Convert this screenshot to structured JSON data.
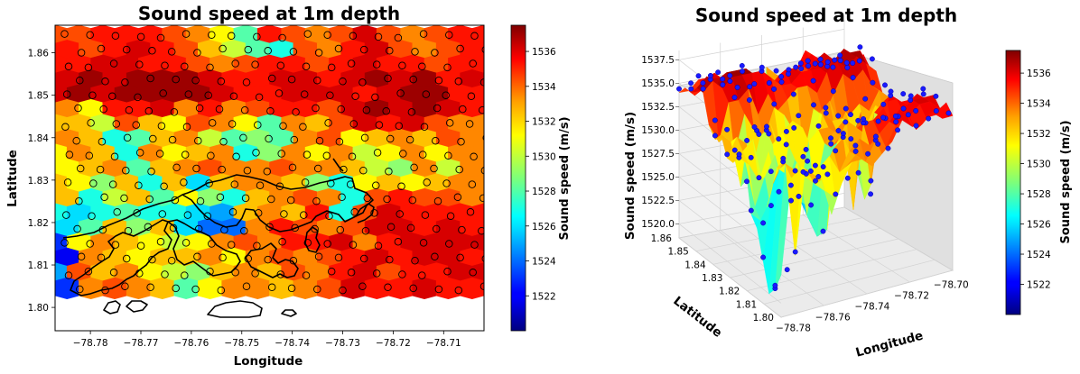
{
  "chart_data": [
    {
      "type": "heatmap",
      "title": "Sound speed  at 1m depth",
      "xlabel": "Longitude",
      "ylabel": "Latitude",
      "xticks": [
        "−78.78",
        "−78.77",
        "−78.76",
        "−78.75",
        "−78.74",
        "−78.73",
        "−78.72",
        "−78.71"
      ],
      "yticks": [
        "1.80",
        "1.81",
        "1.82",
        "1.83",
        "1.84",
        "1.85",
        "1.86"
      ],
      "xlim": [
        -78.787,
        -78.702
      ],
      "ylim": [
        1.7945,
        1.8665
      ],
      "data_ylim_bottom": 1.802,
      "colorbar": {
        "label": "Sound speed (m/s)",
        "ticks": [
          "1522",
          "1524",
          "1526",
          "1528",
          "1530",
          "1532",
          "1534",
          "1536"
        ],
        "range": [
          1520,
          1537.5
        ],
        "colormap": "jet"
      },
      "rows": [
        {
          "lat": 1.864,
          "values": [
            1534,
            1534,
            1535,
            1535,
            1535,
            1534,
            1533,
            1531,
            1528,
            1535,
            1534,
            1533,
            1534,
            1536,
            1534,
            1533,
            1534,
            1535
          ]
        },
        {
          "lat": 1.8605,
          "values": [
            1535,
            1534,
            1535,
            1536,
            1535,
            1534,
            1532,
            1530,
            1528,
            1527,
            1534,
            1533,
            1535,
            1536,
            1534,
            1533,
            1534,
            1535
          ]
        },
        {
          "lat": 1.857,
          "values": [
            1535,
            1535,
            1536,
            1536,
            1535,
            1535,
            1534,
            1533,
            1534,
            1535,
            1535,
            1534,
            1535,
            1536,
            1535,
            1535,
            1534,
            1535
          ]
        },
        {
          "lat": 1.8535,
          "values": [
            1536,
            1537,
            1536,
            1537,
            1537,
            1537,
            1536,
            1535,
            1535,
            1536,
            1536,
            1535,
            1536,
            1537,
            1536,
            1537,
            1535,
            1536
          ]
        },
        {
          "lat": 1.85,
          "values": [
            1536,
            1537,
            1536,
            1537,
            1537,
            1537,
            1537,
            1536,
            1535,
            1535,
            1536,
            1536,
            1536,
            1535,
            1536,
            1537,
            1537,
            1535
          ]
        },
        {
          "lat": 1.8465,
          "values": [
            1533,
            1531,
            1535,
            1535,
            1536,
            1533,
            1535,
            1533,
            1534,
            1535,
            1535,
            1534,
            1536,
            1537,
            1536,
            1537,
            1536,
            1535
          ]
        },
        {
          "lat": 1.843,
          "values": [
            1532,
            1532,
            1530,
            1534,
            1532,
            1531,
            1534,
            1533,
            1531,
            1528,
            1533,
            1532,
            1534,
            1536,
            1535,
            1536,
            1534,
            1533
          ]
        },
        {
          "lat": 1.8395,
          "values": [
            1533,
            1532,
            1527,
            1528,
            1532,
            1533,
            1530,
            1528,
            1529,
            1528,
            1533,
            1534,
            1531,
            1532,
            1533,
            1532,
            1534,
            1533
          ]
        },
        {
          "lat": 1.836,
          "values": [
            1531,
            1533,
            1532,
            1527,
            1533,
            1531,
            1532,
            1533,
            1527,
            1529,
            1533,
            1531,
            1533,
            1530,
            1531,
            1533,
            1531,
            1533
          ]
        },
        {
          "lat": 1.8325,
          "values": [
            1531,
            1532,
            1533,
            1528,
            1532,
            1533,
            1534,
            1533,
            1533,
            1534,
            1533,
            1533,
            1532,
            1530,
            1529,
            1533,
            1530,
            1533
          ]
        },
        {
          "lat": 1.829,
          "values": [
            1532,
            1531,
            1529,
            1532,
            1527,
            1532,
            1526,
            1532,
            1533,
            1533,
            1532,
            1529,
            1527,
            1531,
            1532,
            1531,
            1532,
            1533
          ]
        },
        {
          "lat": 1.8255,
          "values": [
            1532,
            1527,
            1530,
            1532,
            1528,
            1531,
            1529,
            1527,
            1532,
            1533,
            1534,
            1533,
            1527,
            1534,
            1535,
            1534,
            1534,
            1533
          ]
        },
        {
          "lat": 1.822,
          "values": [
            1527,
            1526,
            1527,
            1528,
            1527,
            1527,
            1526,
            1525,
            1532,
            1533,
            1532,
            1535,
            1527,
            1534,
            1536,
            1535,
            1535,
            1535
          ]
        },
        {
          "lat": 1.8185,
          "values": [
            1526,
            1528,
            1532,
            1529,
            1532,
            1526,
            1524,
            1524,
            1533,
            1535,
            1534,
            1533,
            1534,
            1536,
            1536,
            1535,
            1536,
            1535
          ]
        },
        {
          "lat": 1.815,
          "values": [
            1523,
            1531,
            1533,
            1532,
            1531,
            1530,
            1531,
            1533,
            1534,
            1533,
            1535,
            1535,
            1536,
            1533,
            1535,
            1536,
            1536,
            1536
          ]
        },
        {
          "lat": 1.8115,
          "values": [
            1522,
            1533,
            1532,
            1531,
            1532,
            1532,
            1533,
            1531,
            1533,
            1534,
            1533,
            1534,
            1535,
            1536,
            1535,
            1536,
            1536,
            1535
          ]
        },
        {
          "lat": 1.808,
          "values": [
            1525,
            1534,
            1532,
            1533,
            1531,
            1530,
            1529,
            1532,
            1533,
            1532,
            1534,
            1533,
            1535,
            1536,
            1534,
            1535,
            1535,
            1536
          ]
        },
        {
          "lat": 1.8045,
          "values": [
            1523,
            1533,
            1534,
            1533,
            1532,
            1528,
            1531,
            1533,
            1533,
            1532,
            1533,
            1534,
            1536,
            1535,
            1535,
            1536,
            1535,
            1535
          ]
        }
      ]
    },
    {
      "type": "surface",
      "title": "Sound speed  at 1m depth",
      "xlabel": "Longitude",
      "ylabel": "Latitude",
      "zlabel": "Sound  speed (m/s)",
      "xticks": [
        "−78.78",
        "−78.76",
        "−78.74",
        "−78.72",
        "−78.70"
      ],
      "yticks": [
        "1.80",
        "1.81",
        "1.82",
        "1.83",
        "1.84",
        "1.85",
        "1.86"
      ],
      "zticks": [
        "1520.0",
        "1522.5",
        "1525.0",
        "1527.5",
        "1530.0",
        "1532.5",
        "1535.0",
        "1537.5"
      ],
      "zlim": [
        1518.5,
        1538.5
      ],
      "colorbar": {
        "label": "Sound speed (m/s)",
        "ticks": [
          "1522",
          "1524",
          "1526",
          "1528",
          "1530",
          "1532",
          "1534",
          "1536"
        ],
        "range": [
          1520,
          1537.5
        ],
        "colormap": "jet"
      }
    }
  ],
  "colors": {
    "stations": "#0000ff",
    "coastline": "#000000",
    "pane": "#f2f2f2"
  }
}
